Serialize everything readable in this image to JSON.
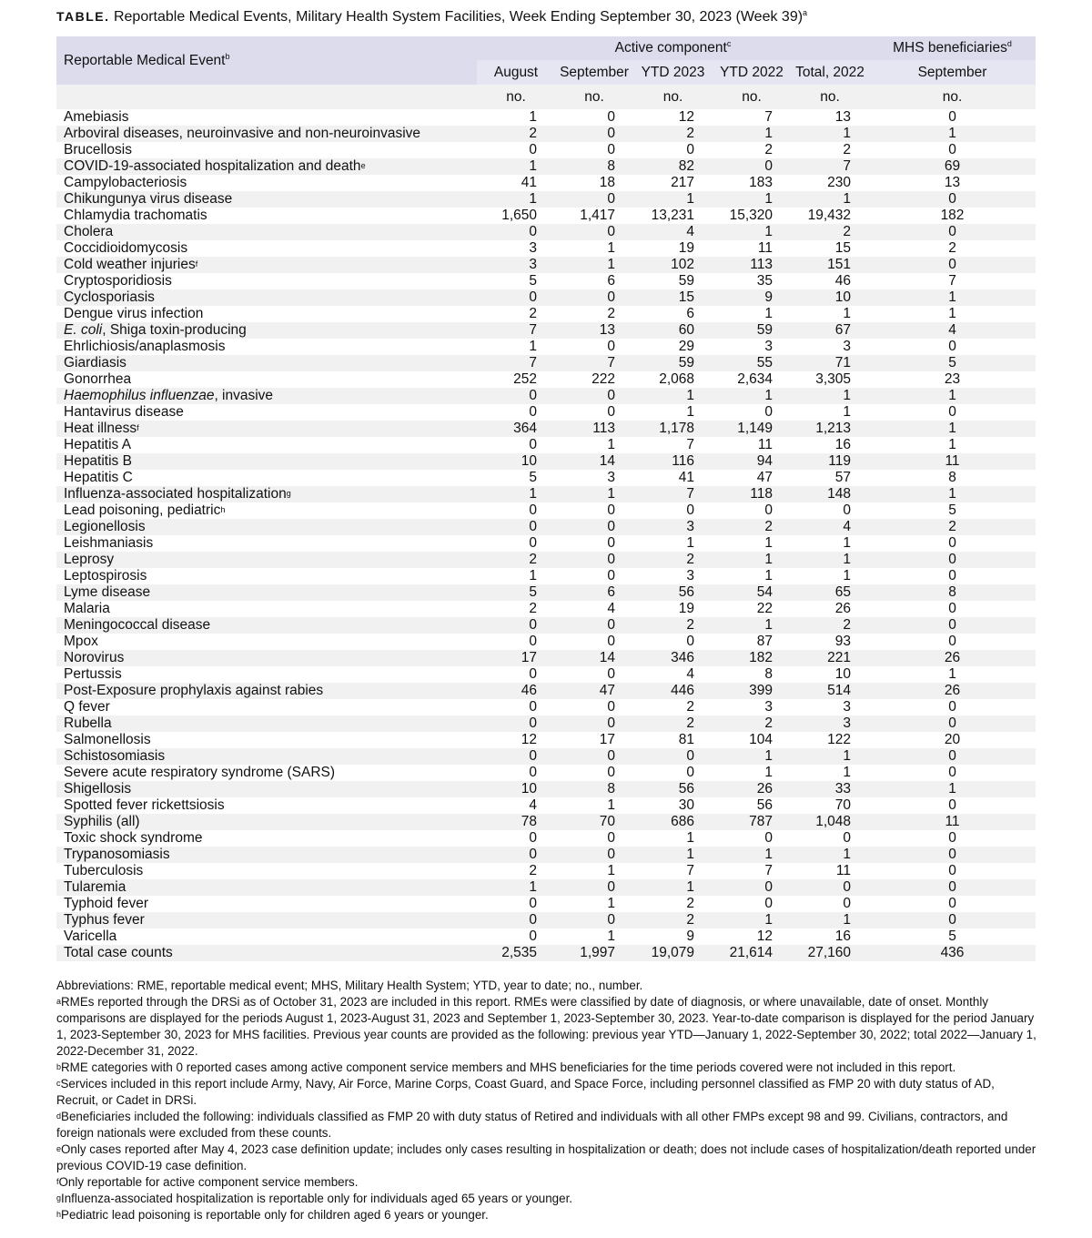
{
  "title": {
    "lead": "TABLE.",
    "text": " Reportable Medical Events, Military Health System Facilities, Week Ending September 30, 2023 (Week 39)",
    "sup": "a"
  },
  "header": {
    "event_col": "Reportable Medical Event",
    "event_sup": "b",
    "active": "Active component",
    "active_sup": "c",
    "mhs": "MHS beneficiaries",
    "mhs_sup": "d",
    "columns": [
      "August",
      "September",
      "YTD 2023",
      "YTD 2022",
      "Total, 2022",
      "September"
    ],
    "unit": "no."
  },
  "rows": [
    {
      "name": "Amebiasis",
      "v": [
        "1",
        "0",
        "12",
        "7",
        "13",
        "0"
      ]
    },
    {
      "name": "Arboviral diseases, neuroinvasive and non-neuroinvasive",
      "v": [
        "2",
        "0",
        "2",
        "1",
        "1",
        "1"
      ]
    },
    {
      "name": "Brucellosis",
      "v": [
        "0",
        "0",
        "0",
        "2",
        "2",
        "0"
      ]
    },
    {
      "name": "COVID-19-associated hospitalization and death",
      "sup": "e",
      "v": [
        "1",
        "8",
        "82",
        "0",
        "7",
        "69"
      ]
    },
    {
      "name": "Campylobacteriosis",
      "v": [
        "41",
        "18",
        "217",
        "183",
        "230",
        "13"
      ]
    },
    {
      "name": "Chikungunya virus disease",
      "v": [
        "1",
        "0",
        "1",
        "1",
        "1",
        "0"
      ]
    },
    {
      "name": "Chlamydia trachomatis",
      "v": [
        "1,650",
        "1,417",
        "13,231",
        "15,320",
        "19,432",
        "182"
      ]
    },
    {
      "name": "Cholera",
      "v": [
        "0",
        "0",
        "4",
        "1",
        "2",
        "0"
      ]
    },
    {
      "name": "Coccidioidomycosis",
      "v": [
        "3",
        "1",
        "19",
        "11",
        "15",
        "2"
      ]
    },
    {
      "name": "Cold weather injuries",
      "sup": "f",
      "v": [
        "3",
        "1",
        "102",
        "113",
        "151",
        "0"
      ]
    },
    {
      "name": "Cryptosporidiosis",
      "v": [
        "5",
        "6",
        "59",
        "35",
        "46",
        "7"
      ]
    },
    {
      "name": "Cyclosporiasis",
      "v": [
        "0",
        "0",
        "15",
        "9",
        "10",
        "1"
      ]
    },
    {
      "name": "Dengue virus infection",
      "v": [
        "2",
        "2",
        "6",
        "1",
        "1",
        "1"
      ]
    },
    {
      "italic": "E. coli",
      "name": ", Shiga toxin-producing",
      "v": [
        "7",
        "13",
        "60",
        "59",
        "67",
        "4"
      ]
    },
    {
      "name": "Ehrlichiosis/anaplasmosis",
      "v": [
        "1",
        "0",
        "29",
        "3",
        "3",
        "0"
      ]
    },
    {
      "name": "Giardiasis",
      "v": [
        "7",
        "7",
        "59",
        "55",
        "71",
        "5"
      ]
    },
    {
      "name": "Gonorrhea",
      "v": [
        "252",
        "222",
        "2,068",
        "2,634",
        "3,305",
        "23"
      ]
    },
    {
      "italic": "Haemophilus influenzae",
      "name": ", invasive",
      "v": [
        "0",
        "0",
        "1",
        "1",
        "1",
        "1"
      ]
    },
    {
      "name": "Hantavirus disease",
      "v": [
        "0",
        "0",
        "1",
        "0",
        "1",
        "0"
      ]
    },
    {
      "name": "Heat illness",
      "sup": "f",
      "v": [
        "364",
        "113",
        "1,178",
        "1,149",
        "1,213",
        "1"
      ]
    },
    {
      "name": "Hepatitis A",
      "v": [
        "0",
        "1",
        "7",
        "11",
        "16",
        "1"
      ]
    },
    {
      "name": "Hepatitis B",
      "v": [
        "10",
        "14",
        "116",
        "94",
        "119",
        "11"
      ]
    },
    {
      "name": "Hepatitis C",
      "v": [
        "5",
        "3",
        "41",
        "47",
        "57",
        "8"
      ]
    },
    {
      "name": "Influenza-associated hospitalization",
      "sup": "g",
      "v": [
        "1",
        "1",
        "7",
        "118",
        "148",
        "1"
      ]
    },
    {
      "name": "Lead poisoning, pediatric",
      "sup": "h",
      "v": [
        "0",
        "0",
        "0",
        "0",
        "0",
        "5"
      ]
    },
    {
      "name": "Legionellosis",
      "v": [
        "0",
        "0",
        "3",
        "2",
        "4",
        "2"
      ]
    },
    {
      "name": "Leishmaniasis",
      "v": [
        "0",
        "0",
        "1",
        "1",
        "1",
        "0"
      ]
    },
    {
      "name": "Leprosy",
      "v": [
        "2",
        "0",
        "2",
        "1",
        "1",
        "0"
      ]
    },
    {
      "name": "Leptospirosis",
      "v": [
        "1",
        "0",
        "3",
        "1",
        "1",
        "0"
      ]
    },
    {
      "name": "Lyme disease",
      "v": [
        "5",
        "6",
        "56",
        "54",
        "65",
        "8"
      ]
    },
    {
      "name": "Malaria",
      "v": [
        "2",
        "4",
        "19",
        "22",
        "26",
        "0"
      ]
    },
    {
      "name": "Meningococcal disease",
      "v": [
        "0",
        "0",
        "2",
        "1",
        "2",
        "0"
      ]
    },
    {
      "name": "Mpox",
      "v": [
        "0",
        "0",
        "0",
        "87",
        "93",
        "0"
      ]
    },
    {
      "name": "Norovirus",
      "v": [
        "17",
        "14",
        "346",
        "182",
        "221",
        "26"
      ]
    },
    {
      "name": "Pertussis",
      "v": [
        "0",
        "0",
        "4",
        "8",
        "10",
        "1"
      ]
    },
    {
      "name": "Post-Exposure prophylaxis against rabies",
      "v": [
        "46",
        "47",
        "446",
        "399",
        "514",
        "26"
      ]
    },
    {
      "name": "Q fever",
      "v": [
        "0",
        "0",
        "2",
        "3",
        "3",
        "0"
      ]
    },
    {
      "name": "Rubella",
      "v": [
        "0",
        "0",
        "2",
        "2",
        "3",
        "0"
      ]
    },
    {
      "name": "Salmonellosis",
      "v": [
        "12",
        "17",
        "81",
        "104",
        "122",
        "20"
      ]
    },
    {
      "name": "Schistosomiasis",
      "v": [
        "0",
        "0",
        "0",
        "1",
        "1",
        "0"
      ]
    },
    {
      "name": "Severe acute respiratory syndrome (SARS)",
      "v": [
        "0",
        "0",
        "0",
        "1",
        "1",
        "0"
      ]
    },
    {
      "name": "Shigellosis",
      "v": [
        "10",
        "8",
        "56",
        "26",
        "33",
        "1"
      ]
    },
    {
      "name": "Spotted fever rickettsiosis",
      "v": [
        "4",
        "1",
        "30",
        "56",
        "70",
        "0"
      ]
    },
    {
      "name": "Syphilis (all)",
      "v": [
        "78",
        "70",
        "686",
        "787",
        "1,048",
        "11"
      ]
    },
    {
      "name": "Toxic shock syndrome",
      "v": [
        "0",
        "0",
        "1",
        "0",
        "0",
        "0"
      ]
    },
    {
      "name": "Trypanosomiasis",
      "v": [
        "0",
        "0",
        "1",
        "1",
        "1",
        "0"
      ]
    },
    {
      "name": "Tuberculosis",
      "v": [
        "2",
        "1",
        "7",
        "7",
        "11",
        "0"
      ]
    },
    {
      "name": "Tularemia",
      "v": [
        "1",
        "0",
        "1",
        "0",
        "0",
        "0"
      ]
    },
    {
      "name": "Typhoid fever",
      "v": [
        "0",
        "1",
        "2",
        "0",
        "0",
        "0"
      ]
    },
    {
      "name": "Typhus fever",
      "v": [
        "0",
        "0",
        "2",
        "1",
        "1",
        "0"
      ]
    },
    {
      "name": "Varicella",
      "v": [
        "0",
        "1",
        "9",
        "12",
        "16",
        "5"
      ]
    },
    {
      "name": "Total case counts",
      "v": [
        "2,535",
        "1,997",
        "19,079",
        "21,614",
        "27,160",
        "436"
      ]
    }
  ],
  "notes": [
    {
      "mark": "",
      "text": "Abbreviations: RME, reportable medical event; MHS, Military Health System; YTD, year to date; no., number."
    },
    {
      "mark": "a",
      "text": "RMEs reported through the DRSi as of October 31, 2023 are included in this report. RMEs were classified by date of diagnosis, or where unavailable, date of onset. Monthly comparisons are displayed for the periods August 1, 2023-August 31, 2023 and September 1, 2023-September 30, 2023. Year-to-date comparison is displayed for the period January 1, 2023-September 30, 2023 for MHS facilities. Previous year counts are provided as the following: previous year YTD—January 1, 2022-September 30, 2022; total 2022—January 1, 2022-December 31, 2022."
    },
    {
      "mark": "b",
      "text": "RME categories with 0 reported cases among active component service members and MHS beneficiaries for the time periods covered were not included in this report."
    },
    {
      "mark": "c",
      "text": "Services included in this report include Army, Navy, Air Force, Marine Corps, Coast Guard, and Space Force, including personnel classified as FMP 20 with duty status of AD, Recruit, or Cadet in DRSi."
    },
    {
      "mark": "d",
      "text": "Beneficiaries included the following: individuals classified as FMP 20 with duty status of Retired and individuals with all other FMPs except 98 and 99. Civilians, contractors, and foreign nationals were excluded from these counts."
    },
    {
      "mark": "e",
      "text": "Only cases reported after May 4, 2023 case definition update; includes only cases resulting in hospitalization or death; does not include cases of hospitalization/death reported under previous COVID-19 case definition."
    },
    {
      "mark": "f",
      "text": "Only reportable for active component service members."
    },
    {
      "mark": "g",
      "text": "Influenza-associated hospitalization is reportable only for individuals aged 65 years or younger."
    },
    {
      "mark": "h",
      "text": "Pediatric lead poisoning is reportable only for children aged 6 years or younger."
    }
  ]
}
